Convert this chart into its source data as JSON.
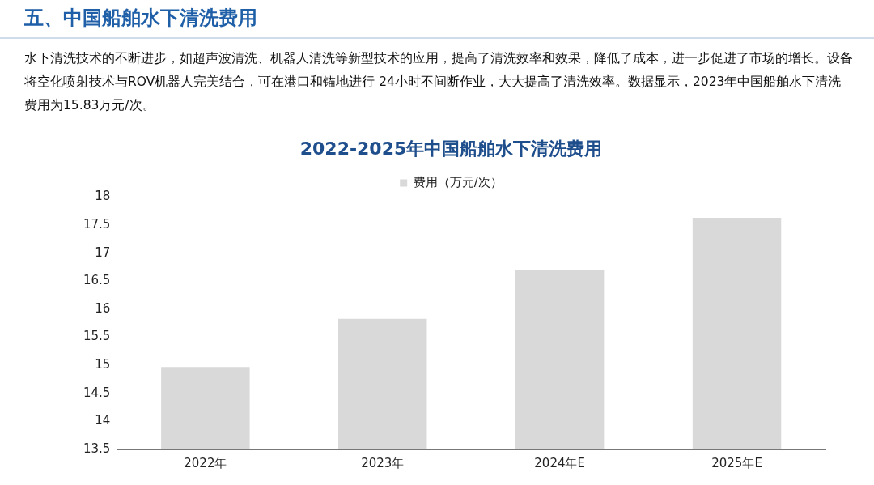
{
  "chart_data": {
    "type": "bar",
    "title": "2022-2025年中国船舶水下清洗费用",
    "categories": [
      "2022年",
      "2023年",
      "2024年E",
      "2025年E"
    ],
    "series": [
      {
        "name": "费用（万元/次）",
        "color": "#d9d9d9",
        "values": [
          14.97,
          15.83,
          16.69,
          17.63
        ]
      }
    ],
    "ylim": [
      13.5,
      18
    ],
    "yticks": [
      13.5,
      14,
      14.5,
      15,
      15.5,
      16,
      16.5,
      17,
      17.5,
      18
    ],
    "grid": false,
    "legend": "top",
    "annotations": [
      "五、中国船舶水下清洗费用",
      "水下清洗技术的不断进步，如超声波清洗、机器人清洗等新型技术的应用，提高了清洗效率和效果，降低了成本，进一步促进了市场的增长。设备将空化喷射技术与ROV机器人完美结合，可在港口和锚地进行 24小时不间断作业，大大提高了清洗效率。数据显示，2023年中国船舶水下清洗费用为15.83万元/次。"
    ]
  }
}
